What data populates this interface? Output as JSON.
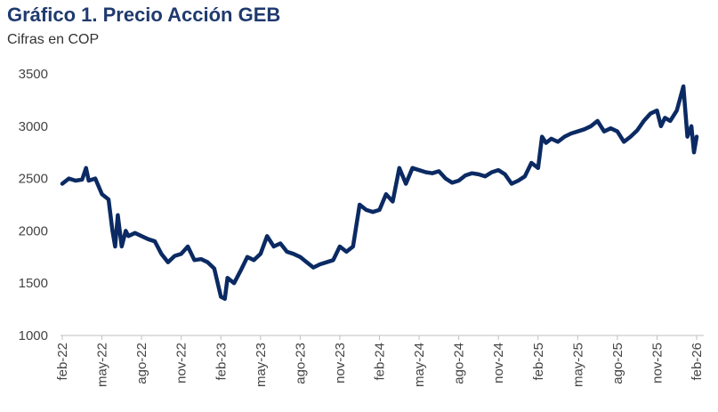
{
  "chart_data": {
    "type": "line",
    "title": "Gráfico 1. Precio Acción GEB",
    "subtitle": "Cifras en COP",
    "xlabel": "",
    "ylabel": "",
    "ylim": [
      1000,
      3500
    ],
    "yticks": [
      1000,
      1500,
      2000,
      2500,
      3000,
      3500
    ],
    "xlim_months_from_feb22": [
      0,
      48
    ],
    "xticks": [
      "feb-22",
      "may-22",
      "ago-22",
      "nov-22",
      "feb-23",
      "may-23",
      "ago-23",
      "nov-23",
      "feb-24",
      "may-24",
      "ago-24",
      "nov-24",
      "feb-25",
      "may-25",
      "ago-25",
      "nov-25",
      "feb-26"
    ],
    "grid": false,
    "color": "#0b2a63",
    "series": [
      {
        "name": "Precio Acción GEB",
        "x": [
          0,
          0.5,
          1,
          1.5,
          1.8,
          2,
          2.5,
          3,
          3.5,
          3.8,
          4,
          4.2,
          4.5,
          4.8,
          5,
          5.5,
          6,
          6.5,
          7,
          7.5,
          8,
          8.5,
          9,
          9.5,
          10,
          10.5,
          11,
          11.5,
          12,
          12.3,
          12.5,
          13,
          13.5,
          14,
          14.5,
          15,
          15.5,
          16,
          16.5,
          17,
          17.5,
          18,
          18.5,
          19,
          19.5,
          20,
          20.5,
          21,
          21.5,
          22,
          22.5,
          23,
          23.5,
          24,
          24.5,
          25,
          25.5,
          26,
          26.5,
          27,
          27.5,
          28,
          28.5,
          29,
          29.5,
          30,
          30.5,
          31,
          31.5,
          32,
          32.5,
          33,
          33.5,
          34,
          34.5,
          35,
          35.5,
          36,
          36.3,
          36.6,
          37,
          37.5,
          38,
          38.5,
          39,
          39.5,
          40,
          40.5,
          41,
          41.5,
          42,
          42.5,
          43,
          43.5,
          44,
          44.5,
          45,
          45.3,
          45.6,
          46,
          46.5,
          47,
          47.3,
          47.6,
          47.8,
          48
        ],
        "values": [
          2450,
          2500,
          2480,
          2490,
          2600,
          2480,
          2500,
          2350,
          2300,
          2000,
          1850,
          2150,
          1850,
          2000,
          1950,
          1980,
          1950,
          1920,
          1900,
          1780,
          1700,
          1760,
          1780,
          1850,
          1720,
          1730,
          1700,
          1640,
          1370,
          1350,
          1550,
          1500,
          1620,
          1750,
          1720,
          1780,
          1950,
          1850,
          1880,
          1800,
          1780,
          1750,
          1700,
          1650,
          1680,
          1700,
          1720,
          1850,
          1800,
          1850,
          2250,
          2200,
          2180,
          2200,
          2350,
          2280,
          2600,
          2450,
          2600,
          2580,
          2560,
          2550,
          2570,
          2500,
          2460,
          2480,
          2530,
          2550,
          2540,
          2520,
          2560,
          2580,
          2540,
          2450,
          2480,
          2520,
          2650,
          2600,
          2900,
          2840,
          2880,
          2850,
          2900,
          2930,
          2950,
          2970,
          3000,
          3050,
          2950,
          2980,
          2950,
          2850,
          2900,
          2960,
          3050,
          3120,
          3150,
          3000,
          3080,
          3050,
          3150,
          3380,
          2900,
          3000,
          2750,
          2900
        ]
      }
    ]
  }
}
